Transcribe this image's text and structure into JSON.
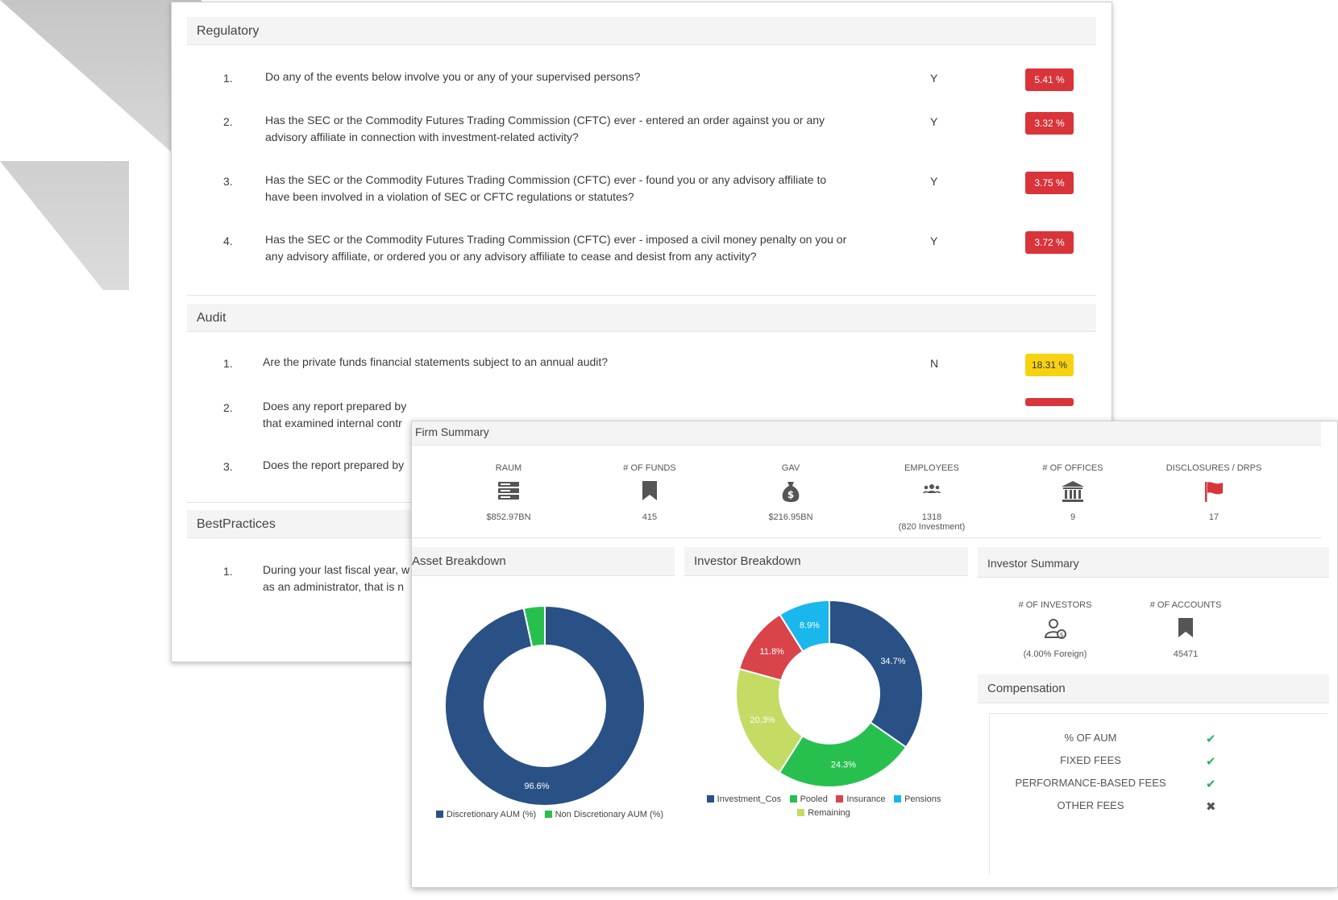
{
  "regulatory": {
    "title": "Regulatory",
    "questions": [
      {
        "num": "1.",
        "text": "Do any of the events below involve you or any of your supervised persons?",
        "answer": "Y",
        "pct": "5.41 %"
      },
      {
        "num": "2.",
        "text": "Has the SEC or the Commodity Futures Trading Commission (CFTC) ever - entered an order against you or any advisory affiliate in connection with investment-related activity?",
        "answer": "Y",
        "pct": "3.32 %"
      },
      {
        "num": "3.",
        "text": "Has the SEC or the Commodity Futures Trading Commission (CFTC) ever - found you or any advisory affiliate to have been involved in a violation of SEC or CFTC regulations or statutes?",
        "answer": "Y",
        "pct": "3.75 %"
      },
      {
        "num": "4.",
        "text": "Has the SEC or the Commodity Futures Trading Commission (CFTC) ever - imposed a civil money penalty on you or any advisory affiliate, or ordered you or any advisory affiliate to cease and desist from any activity?",
        "answer": "Y",
        "pct": "3.72 %"
      }
    ]
  },
  "audit": {
    "title": "Audit",
    "questions": [
      {
        "num": "1.",
        "text": "Are the private funds financial statements subject to an annual audit?",
        "answer": "N",
        "pct": "18.31 %"
      },
      {
        "num": "2.",
        "text": "Does any report prepared by",
        "text2": "that examined internal contr"
      },
      {
        "num": "3.",
        "text": "Does the report prepared by"
      }
    ]
  },
  "best_practices": {
    "title": "BestPractices",
    "questions": [
      {
        "num": "1.",
        "text": "During your last fiscal year, w",
        "text2": "as an administrator, that is n"
      }
    ]
  },
  "firm_summary": {
    "title": "Firm Summary",
    "stats": [
      {
        "label": "RAUM",
        "icon": "server-icon",
        "value": "$852.97BN"
      },
      {
        "label": "# OF FUNDS",
        "icon": "bookmark-icon",
        "value": "415"
      },
      {
        "label": "GAV",
        "icon": "money-bag-icon",
        "value": "$216.95BN"
      },
      {
        "label": "EMPLOYEES",
        "icon": "users-icon",
        "value": "1318",
        "sub": "(820 Investment)"
      },
      {
        "label": "# OF OFFICES",
        "icon": "bank-icon",
        "value": "9"
      },
      {
        "label": "DISCLOSURES / DRPS",
        "icon": "flag-icon",
        "value": "17"
      }
    ]
  },
  "asset_breakdown": {
    "title": "Asset Breakdown",
    "label_main": "96.6%",
    "legend": [
      "Discretionary AUM (%)",
      "Non Discretionary AUM (%)"
    ]
  },
  "investor_breakdown": {
    "title": "Investor Breakdown",
    "labels": [
      "34.7%",
      "24.3%",
      "20.3%",
      "11.8%",
      "8.9%"
    ],
    "legend": [
      "Investment_Cos",
      "Pooled",
      "Insurance",
      "Pensions",
      "Remaining"
    ]
  },
  "investor_summary": {
    "title": "Investor Summary",
    "investors_label": "# OF INVESTORS",
    "investors_value": "(4.00% Foreign)",
    "accounts_label": "# OF ACCOUNTS",
    "accounts_value": "45471"
  },
  "compensation": {
    "title": "Compensation",
    "rows": [
      {
        "label": "% OF AUM",
        "mark": "✔"
      },
      {
        "label": "FIXED FEES",
        "mark": "✔"
      },
      {
        "label": "PERFORMANCE-BASED FEES",
        "mark": "✔"
      },
      {
        "label": "OTHER FEES",
        "mark": "✖"
      }
    ]
  },
  "colors": {
    "navy": "#2a5185",
    "green": "#27c04f",
    "red": "#d9434a",
    "cyan": "#19b7ec",
    "lime": "#c4dc63",
    "badge_red": "#d9343a",
    "badge_yellow": "#f7d210",
    "check_green": "#2ab55f"
  },
  "chart_data": [
    {
      "type": "pie",
      "title": "Asset Breakdown",
      "categories": [
        "Discretionary AUM (%)",
        "Non Discretionary AUM (%)"
      ],
      "values": [
        96.6,
        3.4
      ],
      "legend": "bottom"
    },
    {
      "type": "pie",
      "title": "Investor Breakdown",
      "categories": [
        "Investment_Cos",
        "Pooled",
        "Remaining",
        "Insurance",
        "Pensions"
      ],
      "values": [
        34.7,
        24.3,
        20.3,
        11.8,
        8.9
      ],
      "legend": "bottom"
    }
  ]
}
